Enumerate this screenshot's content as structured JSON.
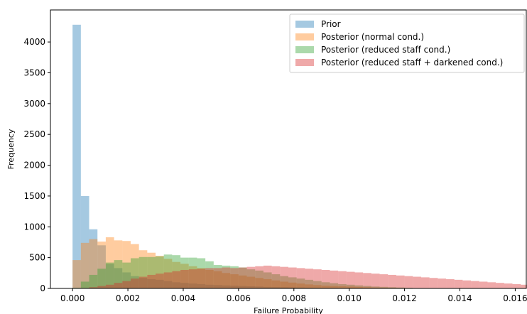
{
  "chart_data": {
    "type": "bar",
    "xlabel": "Failure Probability",
    "ylabel": "Frequency",
    "xlim": [
      -0.0008,
      0.0164
    ],
    "ylim": [
      0,
      4520
    ],
    "xticks": [
      "0.000",
      "0.002",
      "0.004",
      "0.006",
      "0.008",
      "0.010",
      "0.012",
      "0.014",
      "0.016"
    ],
    "yticks": [
      "0",
      "500",
      "1000",
      "1500",
      "2000",
      "2500",
      "3000",
      "3500",
      "4000"
    ],
    "legend": {
      "position": "top-right"
    },
    "grid": false,
    "series": [
      {
        "name": "Prior",
        "color": "#1f77b4",
        "bin_start": 0.0,
        "bin_width": 0.0003,
        "values": [
          4280,
          1500,
          960,
          700,
          400,
          330,
          260,
          200,
          170,
          150,
          140,
          120,
          100,
          90,
          80,
          70,
          60,
          55,
          50,
          45,
          40,
          35,
          30,
          25,
          22,
          20,
          18,
          15,
          12,
          10,
          8,
          7,
          6,
          5,
          4,
          3,
          2,
          2,
          1,
          1
        ]
      },
      {
        "name": "Posterior (normal cond.)",
        "color": "#ff7f0e",
        "bin_start": 0.0,
        "bin_width": 0.0003,
        "values": [
          460,
          740,
          800,
          760,
          830,
          780,
          770,
          720,
          620,
          580,
          530,
          480,
          430,
          400,
          360,
          330,
          300,
          280,
          250,
          230,
          210,
          190,
          170,
          150,
          130,
          110,
          95,
          80,
          65,
          55,
          45,
          40,
          35,
          30,
          25,
          20,
          15,
          12,
          10,
          8,
          5
        ]
      },
      {
        "name": "Posterior (reduced staff cond.)",
        "color": "#2ca02c",
        "bin_start": 0.0,
        "bin_width": 0.0003,
        "values": [
          10,
          110,
          220,
          320,
          420,
          460,
          420,
          490,
          510,
          510,
          520,
          550,
          540,
          500,
          500,
          490,
          440,
          380,
          370,
          360,
          340,
          310,
          290,
          260,
          230,
          200,
          180,
          160,
          140,
          120,
          100,
          85,
          70,
          60,
          50,
          40,
          30,
          25,
          20,
          15,
          10
        ]
      },
      {
        "name": "Posterior (reduced staff + darkened cond.)",
        "color": "#d62728",
        "bin_start": 0.0,
        "bin_width": 0.0003,
        "values": [
          0,
          5,
          20,
          40,
          60,
          90,
          120,
          160,
          190,
          220,
          240,
          260,
          280,
          300,
          310,
          320,
          330,
          330,
          340,
          330,
          340,
          350,
          360,
          370,
          360,
          350,
          340,
          330,
          320,
          310,
          300,
          290,
          280,
          270,
          260,
          250,
          240,
          230,
          220,
          210,
          200,
          190,
          180,
          170,
          160,
          150,
          140,
          130,
          120,
          110,
          100,
          90,
          80,
          70,
          60
        ]
      }
    ]
  }
}
